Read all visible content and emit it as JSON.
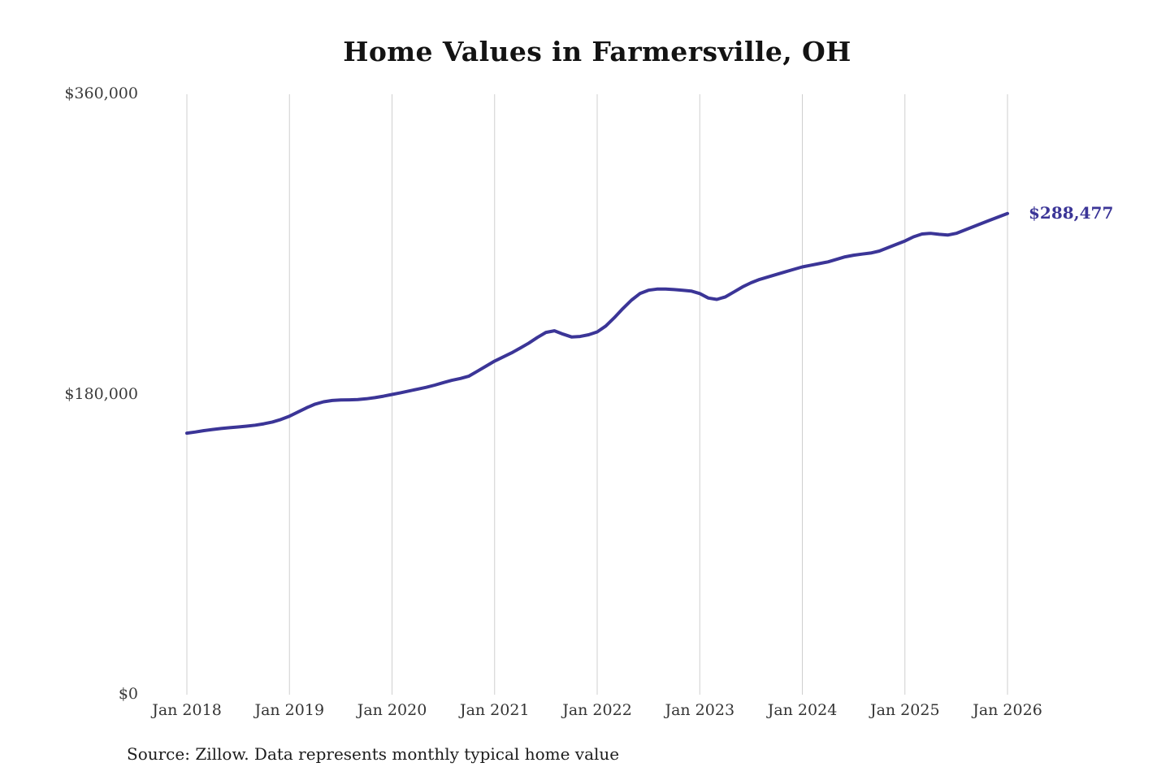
{
  "title": "Home Values in Farmersville, OH",
  "source_note": "Source: Zillow. Data represents monthly typical home value",
  "chart_data": {
    "type": "line",
    "title": "Home Values in Farmersville, OH",
    "series_name": "Typical home value (monthly)",
    "x_interval": "monthly",
    "x_start": "Jan 2018",
    "x_end": "Jan 2026",
    "x_tick_labels": [
      "Jan 2018",
      "Jan 2019",
      "Jan 2020",
      "Jan 2021",
      "Jan 2022",
      "Jan 2023",
      "Jan 2024",
      "Jan 2025",
      "Jan 2026"
    ],
    "y_tick_labels": [
      "$0",
      "$180,000",
      "$360,000"
    ],
    "ylim": [
      0,
      360000
    ],
    "grid": "vertical-only",
    "grid_color": "#cfcfcf",
    "line_color": "#3b3597",
    "end_label": "$288,477",
    "end_value": 288477,
    "values": [
      156800,
      157500,
      158300,
      159000,
      159600,
      160100,
      160500,
      161000,
      161600,
      162400,
      163500,
      165000,
      167000,
      169500,
      172000,
      174200,
      175600,
      176400,
      176700,
      176800,
      177000,
      177400,
      178100,
      179000,
      180000,
      181000,
      182100,
      183200,
      184300,
      185600,
      187100,
      188500,
      189600,
      191000,
      194000,
      197000,
      200000,
      202500,
      205000,
      207800,
      210800,
      214200,
      217200,
      218200,
      216200,
      214500,
      214800,
      215800,
      217500,
      221000,
      226000,
      231500,
      236500,
      240500,
      242500,
      243200,
      243200,
      242900,
      242500,
      242000,
      240500,
      237800,
      237000,
      238500,
      241500,
      244500,
      247000,
      249000,
      250500,
      252000,
      253500,
      255000,
      256500,
      257500,
      258500,
      259500,
      261000,
      262500,
      263500,
      264200,
      264800,
      266000,
      268000,
      270000,
      272000,
      274500,
      276200,
      276600,
      276000,
      275600,
      276600,
      278600,
      280600,
      282600,
      284600,
      286600,
      288477
    ]
  }
}
